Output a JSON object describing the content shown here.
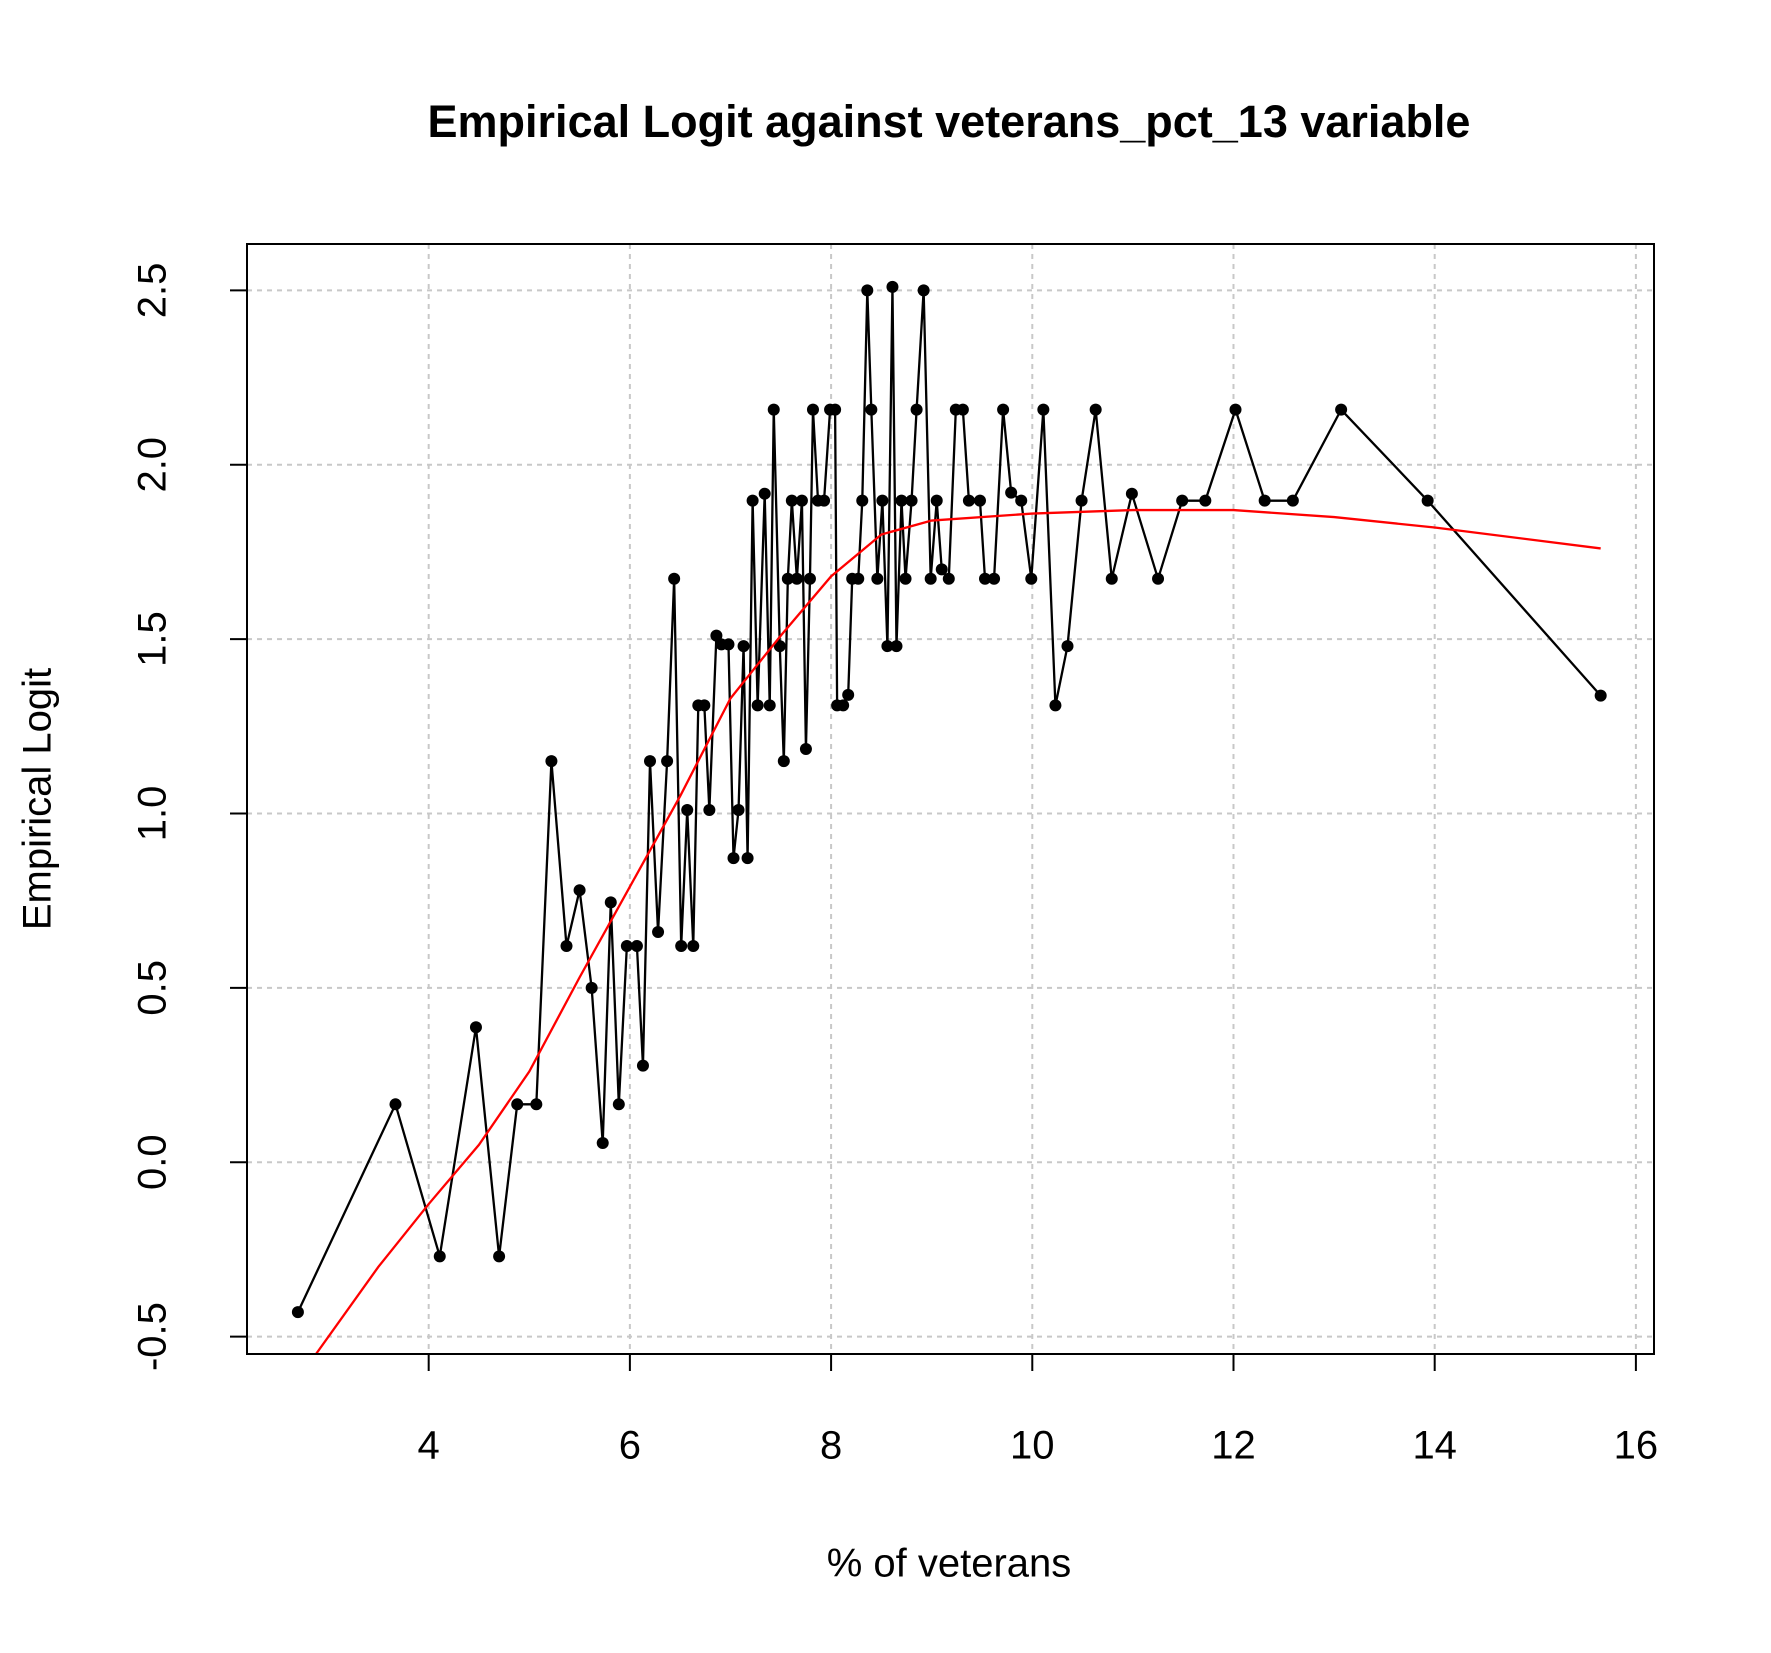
{
  "chart_data": {
    "type": "line",
    "title": "Empirical Logit against veterans_pct_13 variable",
    "xlabel": "% of veterans",
    "ylabel": "Empirical Logit",
    "xlim": [
      2.194,
      16.18
    ],
    "ylim": [
      -0.55,
      2.633
    ],
    "xticks": [
      4,
      6,
      8,
      10,
      12,
      14,
      16
    ],
    "yticks": [
      -0.5,
      {
        "value": 0,
        "label": "0.0"
      },
      0.5,
      {
        "value": 1,
        "label": "1.0"
      },
      1.5,
      {
        "value": 2,
        "label": "2.0"
      },
      2.5
    ],
    "grid": true,
    "series": [
      {
        "color": "#000000",
        "markers": true,
        "x": [
          2.7,
          3.67,
          4.11,
          4.47,
          4.7,
          4.88,
          5.07,
          5.22,
          5.37,
          5.5,
          5.62,
          5.73,
          5.81,
          5.89,
          5.97,
          6.07,
          6.13,
          6.2,
          6.28,
          6.37,
          6.44,
          6.51,
          6.57,
          6.63,
          6.68,
          6.74,
          6.79,
          6.86,
          6.91,
          6.98,
          7.03,
          7.08,
          7.13,
          7.17,
          7.22,
          7.27,
          7.34,
          7.39,
          7.43,
          7.49,
          7.53,
          7.57,
          7.61,
          7.66,
          7.71,
          7.75,
          7.79,
          7.82,
          7.87,
          7.93,
          7.99,
          8.04,
          8.06,
          8.12,
          8.17,
          8.21,
          8.27,
          8.31,
          8.36,
          8.4,
          8.46,
          8.51,
          8.56,
          8.61,
          8.65,
          8.7,
          8.74,
          8.8,
          8.85,
          8.92,
          8.99,
          9.05,
          9.1,
          9.17,
          9.24,
          9.31,
          9.37,
          9.48,
          9.53,
          9.62,
          9.71,
          9.79,
          9.89,
          9.99,
          10.11,
          10.23,
          10.35,
          10.49,
          10.63,
          10.79,
          10.99,
          11.25,
          11.49,
          11.72,
          12.02,
          12.31,
          12.59,
          13.07,
          13.93,
          15.65
        ],
        "values": [
          -0.43,
          0.166,
          -0.27,
          0.387,
          -0.27,
          0.166,
          0.166,
          1.15,
          0.62,
          0.78,
          0.5,
          0.055,
          0.745,
          0.166,
          0.62,
          0.62,
          0.277,
          1.15,
          0.66,
          1.15,
          1.673,
          0.62,
          1.01,
          0.62,
          1.31,
          1.31,
          1.01,
          1.51,
          1.485,
          1.485,
          0.872,
          1.01,
          1.48,
          0.872,
          1.897,
          1.31,
          1.917,
          1.31,
          2.158,
          1.48,
          1.15,
          1.673,
          1.897,
          1.673,
          1.897,
          1.185,
          1.673,
          2.158,
          1.897,
          1.897,
          2.158,
          2.158,
          1.31,
          1.31,
          1.34,
          1.673,
          1.673,
          1.897,
          2.5,
          2.158,
          1.673,
          1.897,
          1.48,
          2.51,
          1.48,
          1.897,
          1.673,
          1.897,
          2.158,
          2.5,
          1.673,
          1.897,
          1.7,
          1.673,
          2.158,
          2.158,
          1.897,
          1.897,
          1.673,
          1.673,
          2.158,
          1.92,
          1.897,
          1.673,
          2.158,
          1.31,
          1.48,
          1.897,
          2.158,
          1.673,
          1.917,
          1.673,
          1.897,
          1.897,
          2.158,
          1.897,
          1.897,
          2.158,
          1.897,
          1.338
        ]
      },
      {
        "color": "#ff0000",
        "markers": false,
        "x": [
          2.88,
          3.5,
          4.0,
          4.5,
          5.0,
          5.5,
          6.0,
          6.5,
          7.0,
          7.5,
          8.0,
          8.5,
          9.0,
          10,
          11,
          12,
          13,
          14,
          15.65
        ],
        "values": [
          -0.55,
          -0.3,
          -0.12,
          0.05,
          0.26,
          0.53,
          0.79,
          1.05,
          1.33,
          1.51,
          1.68,
          1.8,
          1.84,
          1.86,
          1.87,
          1.87,
          1.85,
          1.82,
          1.76
        ]
      }
    ]
  }
}
